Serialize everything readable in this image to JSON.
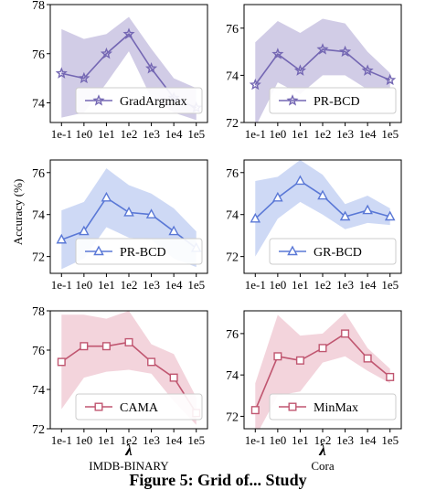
{
  "figure": {
    "ylabel": "Accuracy (%)",
    "caption": "Figure 5: Grid of... Study",
    "columns": [
      {
        "xlabel": "λ",
        "dataset": "IMDB-BINARY"
      },
      {
        "xlabel": "λ",
        "dataset": "Cora"
      }
    ]
  },
  "chart_data": [
    {
      "type": "line",
      "panel": "top-left",
      "categories": [
        "1e-1",
        "1e0",
        "1e1",
        "1e2",
        "1e3",
        "1e4",
        "1e5"
      ],
      "series": [
        {
          "name": "GradArgmax",
          "values": [
            75.2,
            75.0,
            76.0,
            76.8,
            75.4,
            74.2,
            73.8
          ],
          "band_lower": [
            73.4,
            73.6,
            74.8,
            76.1,
            74.2,
            73.6,
            73.3
          ],
          "band_upper": [
            77.0,
            76.6,
            76.8,
            77.5,
            76.2,
            75.0,
            74.6
          ]
        }
      ],
      "ylim": [
        73.2,
        78
      ],
      "yticks": [
        74,
        76,
        78
      ],
      "marker": "star",
      "color": "#7467b3",
      "fill": "#c9c3e2",
      "legend": "bottom-right"
    },
    {
      "type": "line",
      "panel": "top-right",
      "categories": [
        "1e-1",
        "1e0",
        "1e1",
        "1e2",
        "1e3",
        "1e4",
        "1e5"
      ],
      "series": [
        {
          "name": "PR-BCD",
          "values": [
            73.6,
            74.9,
            74.2,
            75.1,
            75.0,
            74.2,
            73.8
          ],
          "band_lower": [
            71.8,
            73.7,
            73.2,
            74.0,
            74.0,
            73.4,
            73.4
          ],
          "band_upper": [
            75.4,
            76.3,
            75.8,
            76.4,
            76.2,
            75.0,
            74.1
          ]
        }
      ],
      "ylim": [
        72,
        77
      ],
      "yticks": [
        72,
        74,
        76
      ],
      "marker": "star",
      "color": "#7467b3",
      "fill": "#c9c3e2",
      "legend": "bottom-right"
    },
    {
      "type": "line",
      "panel": "middle-left",
      "categories": [
        "1e-1",
        "1e0",
        "1e1",
        "1e2",
        "1e3",
        "1e4",
        "1e5"
      ],
      "series": [
        {
          "name": "PR-BCD",
          "values": [
            72.8,
            73.2,
            74.8,
            74.1,
            74.0,
            73.2,
            72.4
          ],
          "band_lower": [
            71.4,
            71.9,
            73.4,
            72.9,
            72.8,
            71.9,
            71.5
          ],
          "band_upper": [
            74.2,
            74.6,
            76.2,
            75.4,
            75.0,
            74.3,
            73.2
          ]
        }
      ],
      "ylim": [
        71.2,
        76.6
      ],
      "yticks": [
        72,
        74,
        76
      ],
      "marker": "triangle",
      "color": "#5a78d6",
      "fill": "#c5d2f3",
      "legend": "bottom-right"
    },
    {
      "type": "line",
      "panel": "middle-right",
      "categories": [
        "1e-1",
        "1e0",
        "1e1",
        "1e2",
        "1e3",
        "1e4",
        "1e5"
      ],
      "series": [
        {
          "name": "GR-BCD",
          "values": [
            73.8,
            74.8,
            75.6,
            74.9,
            73.9,
            74.2,
            73.9
          ],
          "band_lower": [
            72.0,
            73.8,
            74.6,
            74.0,
            73.3,
            73.6,
            73.5
          ],
          "band_upper": [
            75.6,
            75.8,
            76.6,
            75.9,
            74.5,
            74.9,
            74.3
          ]
        }
      ],
      "ylim": [
        71.2,
        76.6
      ],
      "yticks": [
        72,
        74,
        76
      ],
      "marker": "triangle",
      "color": "#5a78d6",
      "fill": "#c5d2f3",
      "legend": "bottom-right"
    },
    {
      "type": "line",
      "panel": "bottom-left",
      "categories": [
        "1e-1",
        "1e0",
        "1e1",
        "1e2",
        "1e3",
        "1e4",
        "1e5"
      ],
      "series": [
        {
          "name": "CAMA",
          "values": [
            75.4,
            76.2,
            76.2,
            76.4,
            75.4,
            74.6,
            72.8
          ],
          "band_lower": [
            73.0,
            74.6,
            74.9,
            75.0,
            74.8,
            73.4,
            72.2
          ],
          "band_upper": [
            77.8,
            77.8,
            77.6,
            78.0,
            76.3,
            75.8,
            73.6
          ]
        }
      ],
      "ylim": [
        72,
        78
      ],
      "yticks": [
        72,
        74,
        76,
        78
      ],
      "marker": "square",
      "color": "#c05670",
      "fill": "#f1cdd6",
      "legend": "bottom-right"
    },
    {
      "type": "line",
      "panel": "bottom-right",
      "categories": [
        "1e-1",
        "1e0",
        "1e1",
        "1e2",
        "1e3",
        "1e4",
        "1e5"
      ],
      "series": [
        {
          "name": "MinMax",
          "values": [
            72.3,
            74.9,
            74.7,
            75.3,
            76.0,
            74.8,
            73.9
          ],
          "band_lower": [
            71.0,
            73.0,
            73.2,
            74.6,
            74.9,
            74.2,
            73.6
          ],
          "band_upper": [
            73.6,
            76.9,
            75.9,
            76.0,
            77.0,
            75.3,
            74.3
          ]
        }
      ],
      "ylim": [
        71.4,
        77.1
      ],
      "yticks": [
        72,
        74,
        76
      ],
      "marker": "square",
      "color": "#c05670",
      "fill": "#f1cdd6",
      "legend": "bottom-right"
    }
  ]
}
